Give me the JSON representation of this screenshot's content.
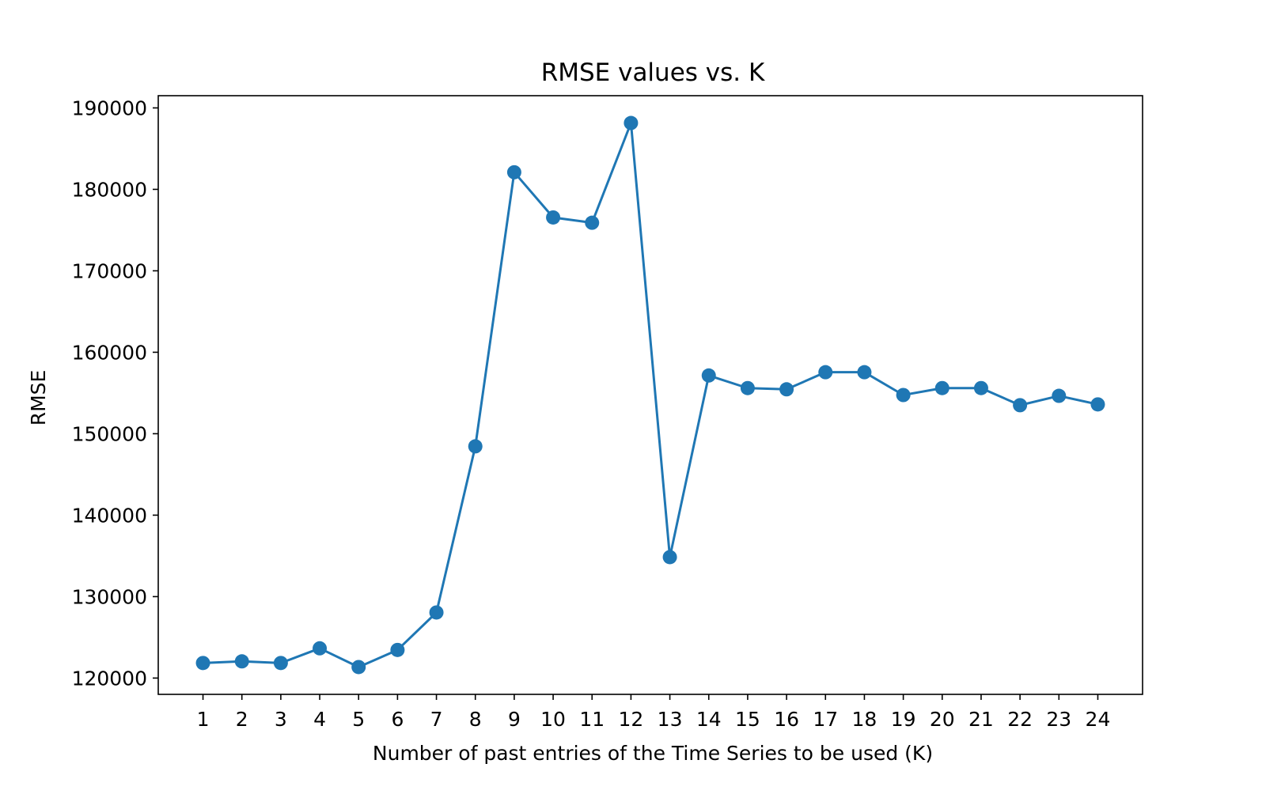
{
  "chart_data": {
    "type": "line",
    "title": "RMSE values vs. K",
    "xlabel": "Number of past entries of the Time Series to be used (K)",
    "ylabel": "RMSE",
    "x": [
      1,
      2,
      3,
      4,
      5,
      6,
      7,
      8,
      9,
      10,
      11,
      12,
      13,
      14,
      15,
      16,
      17,
      18,
      19,
      20,
      21,
      22,
      23,
      24
    ],
    "x_ticks": [
      "1",
      "2",
      "3",
      "4",
      "5",
      "6",
      "7",
      "8",
      "9",
      "10",
      "11",
      "12",
      "13",
      "14",
      "15",
      "16",
      "17",
      "18",
      "19",
      "20",
      "21",
      "22",
      "23",
      "24"
    ],
    "y_ticks": [
      "120000",
      "130000",
      "140000",
      "150000",
      "160000",
      "170000",
      "180000",
      "190000"
    ],
    "xlim": [
      -0.15,
      25.15
    ],
    "ylim": [
      118000,
      191500
    ],
    "grid": false,
    "series": [
      {
        "color": "#1f77b4",
        "marker": "circle",
        "values": [
          121850,
          122050,
          121850,
          123650,
          121350,
          123450,
          128050,
          148450,
          182100,
          176550,
          175900,
          188150,
          134850,
          157150,
          155600,
          155450,
          157550,
          157550,
          154750,
          155600,
          155600,
          153500,
          154650,
          153600
        ]
      }
    ]
  }
}
